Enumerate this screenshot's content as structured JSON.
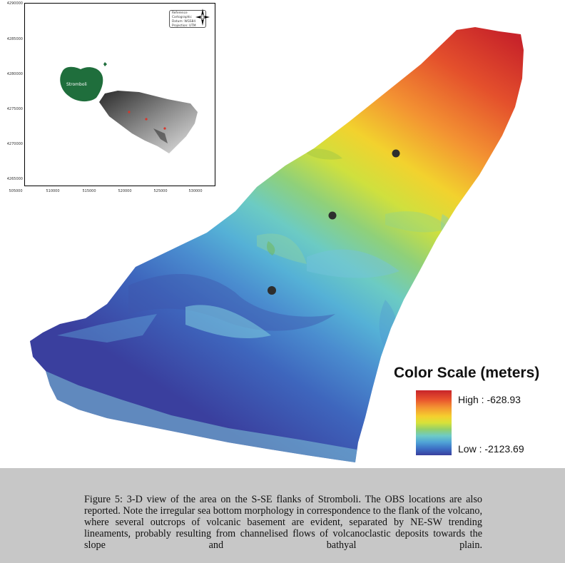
{
  "inset": {
    "y_ticks": [
      "4290000",
      "4285000",
      "4280000",
      "4275000",
      "4270000",
      "4265000"
    ],
    "x_ticks": [
      "505000",
      "510000",
      "515000",
      "520000",
      "525000",
      "530000"
    ],
    "info": {
      "line1": "Reference Cartographic",
      "line2": "Datum: WGS84",
      "line3": "Projection: UTM"
    },
    "island_label": "Stromboli",
    "colors": {
      "island": "#1f6e3c",
      "obs_marker": "#d8362b"
    }
  },
  "map": {
    "obs_marker_color": "#2e2e2e",
    "obs_count": 3
  },
  "legend": {
    "title": "Color Scale (meters)",
    "high_label": "High : -628.93",
    "low_label": "Low : -2123.69",
    "high_value": -628.93,
    "low_value": -2123.69,
    "colors": [
      "#c8242a",
      "#f39232",
      "#f5cf2e",
      "#93d06a",
      "#6ecbc6",
      "#4fa3d6",
      "#3a3f9e"
    ]
  },
  "caption": {
    "text": "Figure 5: 3-D view of the area on the S-SE flanks of Stromboli. The OBS locations are also reported. Note the irregular sea bottom morphology in correspondence to the flank of the volcano, where several outcrops of volcanic basement are evident, separated by NE-SW trending lineaments, probably resulting from channelised flows of volcanoclastic deposits towards the slope and bathyal plain."
  }
}
